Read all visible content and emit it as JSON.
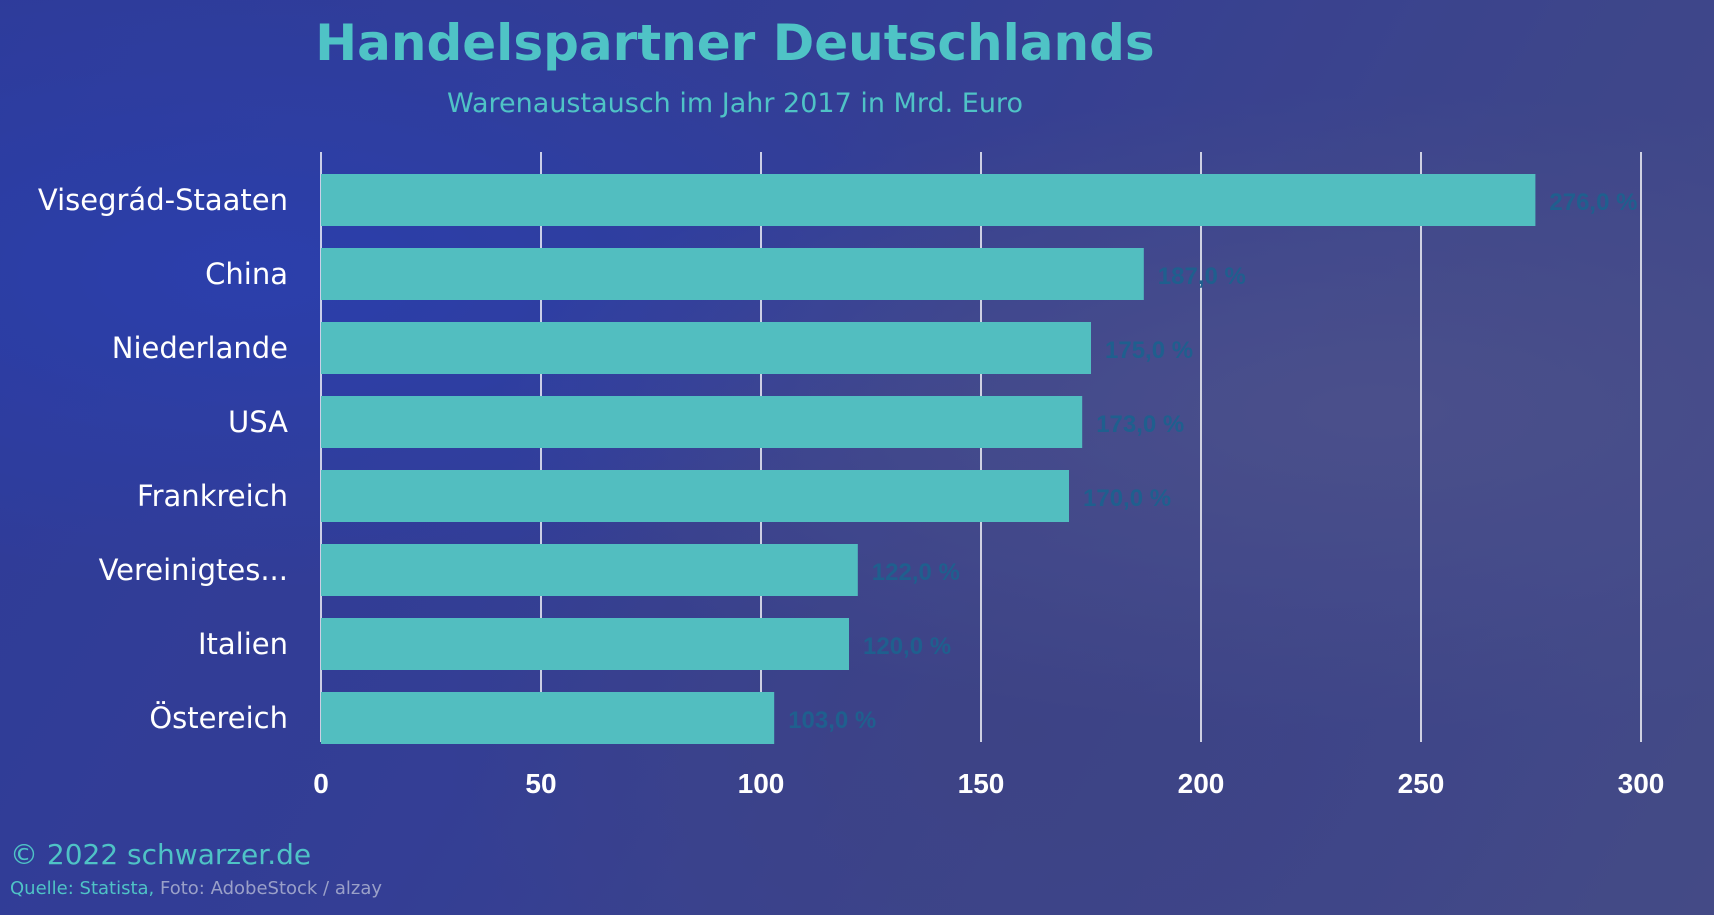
{
  "header": {
    "title": "Handelspartner Deutschlands",
    "subtitle": "Warenaustausch im Jahr 2017 in Mrd. Euro"
  },
  "footer": {
    "copyright": "© 2022 schwarzer.de",
    "source": "Quelle: Statista,",
    "photo": " Foto: AdobeStock /  alzay"
  },
  "colors": {
    "bar": "#52bec0",
    "value_label": "#1f5f8e",
    "grid": "#ffffff",
    "category_text": "#ffffff",
    "title": "#4fc3c6"
  },
  "chart_data": {
    "type": "bar",
    "orientation": "horizontal",
    "title": "Handelspartner Deutschlands",
    "subtitle": "Warenaustausch im Jahr 2017 in Mrd. Euro",
    "categories": [
      "Visegrád-Staaten",
      "China",
      "Niederlande",
      "USA",
      "Frankreich",
      "Vereinigtes...",
      "Italien",
      "Östereich"
    ],
    "values": [
      276,
      187,
      175,
      173,
      170,
      122,
      120,
      103
    ],
    "value_labels": [
      "276,0 %",
      "187,0 %",
      "175,0 %",
      "173,0 %",
      "170,0 %",
      "122,0 %",
      "120,0 %",
      "103,0 %"
    ],
    "xlim": [
      0,
      300
    ],
    "xticks": [
      0,
      50,
      100,
      150,
      200,
      250,
      300
    ],
    "xtick_labels": [
      "0",
      "50",
      "100",
      "150",
      "200",
      "250",
      "300"
    ],
    "grid": true,
    "legend": "none"
  }
}
